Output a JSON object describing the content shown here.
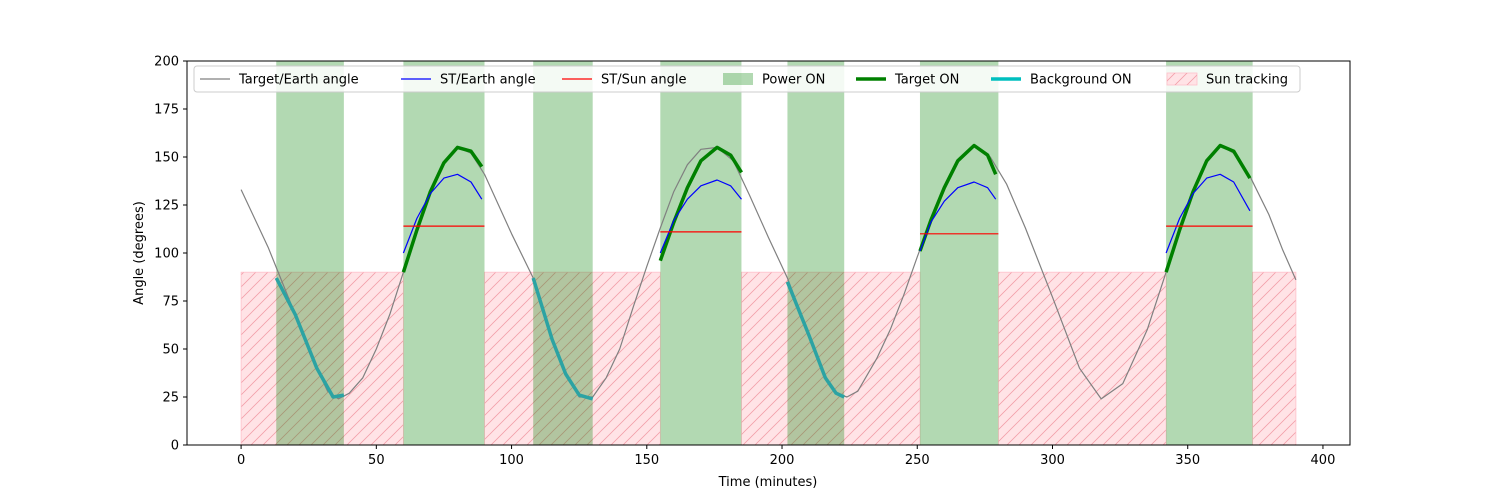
{
  "chart_data": {
    "type": "line",
    "title": "",
    "xlabel": "Time (minutes)",
    "ylabel": "Angle (degrees)",
    "xlim": [
      -20,
      410
    ],
    "ylim": [
      0,
      200
    ],
    "xticks": [
      0,
      50,
      100,
      150,
      200,
      250,
      300,
      350,
      400
    ],
    "yticks": [
      0,
      25,
      50,
      75,
      100,
      125,
      150,
      175,
      200
    ],
    "grid": false,
    "legend_position": "top",
    "legend": [
      {
        "label": "Target/Earth angle",
        "kind": "line",
        "color": "#808080"
      },
      {
        "label": "ST/Earth angle",
        "kind": "line",
        "color": "#0000ff"
      },
      {
        "label": "ST/Sun angle",
        "kind": "line",
        "color": "#ff0000"
      },
      {
        "label": "Power ON",
        "kind": "patch",
        "color": "#008000"
      },
      {
        "label": "Target ON",
        "kind": "thickline",
        "color": "#008000"
      },
      {
        "label": "Background ON",
        "kind": "thickline",
        "color": "#00bfbf"
      },
      {
        "label": "Sun tracking",
        "kind": "hatch",
        "color": "#ffc0cb"
      }
    ],
    "target_earth_angle": {
      "name": "Target/Earth angle",
      "color": "#808080",
      "x": [
        0,
        10,
        20,
        28,
        32,
        36,
        40,
        45,
        50,
        55,
        60,
        65,
        70,
        75,
        80,
        85,
        90,
        100,
        108,
        115,
        120,
        125,
        130,
        135,
        140,
        145,
        150,
        155,
        160,
        165,
        170,
        176,
        182,
        188,
        195,
        202,
        210,
        216,
        220,
        224,
        228,
        235,
        240,
        245,
        250,
        255,
        260,
        265,
        271,
        277,
        283,
        290,
        300,
        310,
        318,
        326,
        335,
        342,
        347,
        352,
        357,
        362,
        367,
        373,
        380,
        385,
        390
      ],
      "y": [
        133,
        103,
        68,
        40,
        28,
        24,
        27,
        35,
        50,
        68,
        90,
        112,
        132,
        147,
        155,
        152,
        141,
        110,
        87,
        55,
        37,
        25,
        25,
        35,
        50,
        72,
        93,
        113,
        132,
        146,
        154,
        155,
        148,
        130,
        108,
        87,
        57,
        35,
        27,
        25,
        28,
        45,
        60,
        78,
        98,
        117,
        134,
        148,
        156,
        150,
        136,
        113,
        77,
        40,
        24,
        32,
        60,
        90,
        112,
        132,
        148,
        156,
        152,
        140,
        120,
        102,
        86
      ]
    },
    "target_on": {
      "name": "Target ON",
      "color": "#008000",
      "segments": [
        {
          "x": [
            60,
            65,
            70,
            75,
            80,
            85,
            89
          ],
          "y": [
            90,
            112,
            132,
            147,
            155,
            153,
            145
          ]
        },
        {
          "x": [
            155,
            160,
            165,
            170,
            176,
            181,
            185
          ],
          "y": [
            96,
            116,
            134,
            148,
            155,
            151,
            142
          ]
        },
        {
          "x": [
            251,
            255,
            260,
            265,
            271,
            276,
            279
          ],
          "y": [
            101,
            117,
            134,
            148,
            156,
            151,
            141
          ]
        },
        {
          "x": [
            342,
            347,
            352,
            357,
            362,
            367,
            373
          ],
          "y": [
            90,
            112,
            132,
            148,
            156,
            153,
            139
          ]
        }
      ]
    },
    "background_on": {
      "name": "Background ON",
      "color": "#2ca3a3",
      "segments": [
        {
          "x": [
            13,
            20,
            28,
            34,
            38
          ],
          "y": [
            87,
            68,
            40,
            25,
            26
          ]
        },
        {
          "x": [
            108,
            115,
            120,
            125,
            130
          ],
          "y": [
            87,
            55,
            37,
            26,
            24
          ]
        },
        {
          "x": [
            202,
            210,
            216,
            220,
            223
          ],
          "y": [
            85,
            57,
            35,
            27,
            25
          ]
        }
      ]
    },
    "st_earth_angle": {
      "name": "ST/Earth angle",
      "color": "#0000ff",
      "segments": [
        {
          "x": [
            60,
            65,
            70,
            75,
            80,
            85,
            89
          ],
          "y": [
            100,
            118,
            131,
            139,
            141,
            137,
            128
          ]
        },
        {
          "x": [
            155,
            160,
            165,
            170,
            176,
            181,
            185
          ],
          "y": [
            100,
            117,
            128,
            135,
            138,
            135,
            128
          ]
        },
        {
          "x": [
            251,
            255,
            260,
            265,
            271,
            276,
            279
          ],
          "y": [
            101,
            116,
            127,
            134,
            137,
            134,
            128
          ]
        },
        {
          "x": [
            342,
            347,
            352,
            357,
            362,
            367,
            373
          ],
          "y": [
            100,
            118,
            131,
            139,
            141,
            137,
            122
          ]
        }
      ]
    },
    "st_sun_angle": {
      "name": "ST/Sun angle",
      "color": "#ff0000",
      "segments": [
        {
          "x": [
            60,
            90
          ],
          "y": [
            114,
            114
          ]
        },
        {
          "x": [
            155,
            185
          ],
          "y": [
            111,
            111
          ]
        },
        {
          "x": [
            251,
            280
          ],
          "y": [
            110,
            110
          ]
        },
        {
          "x": [
            342,
            374
          ],
          "y": [
            114,
            114
          ]
        }
      ]
    },
    "power_on_intervals": [
      [
        13,
        38
      ],
      [
        60,
        90
      ],
      [
        108,
        130
      ],
      [
        155,
        185
      ],
      [
        202,
        223
      ],
      [
        251,
        280
      ],
      [
        342,
        374
      ]
    ],
    "sun_tracking_intervals": [
      [
        0,
        60
      ],
      [
        90,
        155
      ],
      [
        185,
        251
      ],
      [
        280,
        342
      ],
      [
        374,
        390
      ]
    ],
    "sun_tracking_level": 90
  }
}
